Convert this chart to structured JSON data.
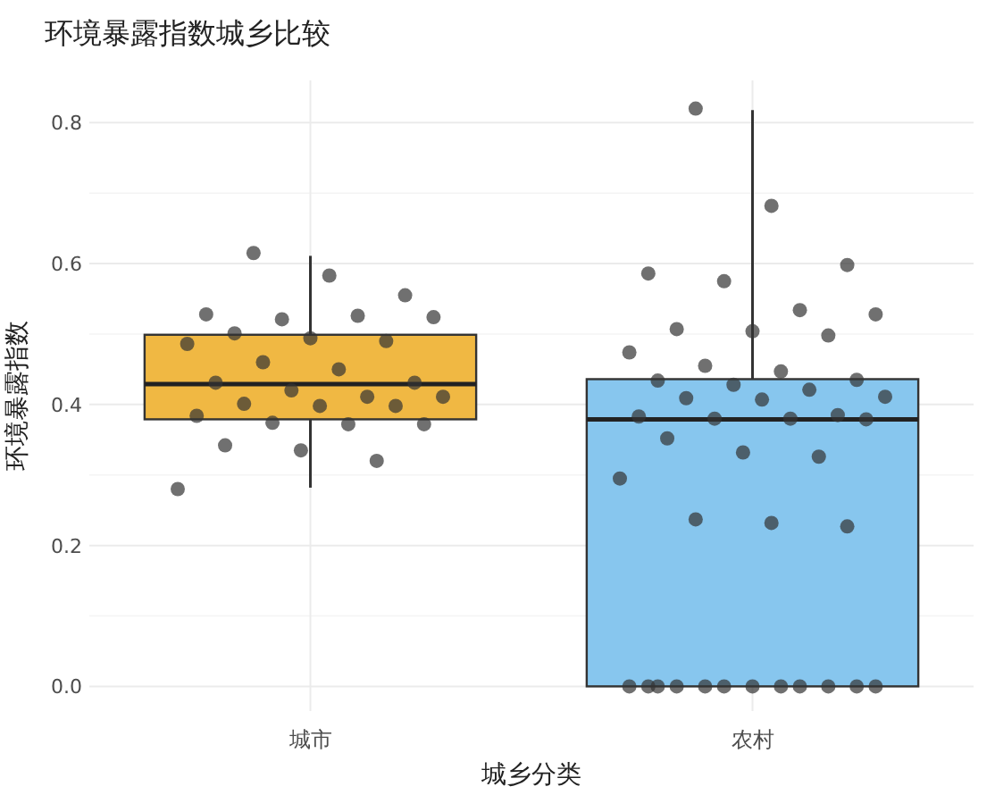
{
  "chart_data": {
    "type": "box",
    "title": "环境暴露指数城乡比较",
    "xlabel": "城乡分类",
    "ylabel": "环境暴露指数",
    "categories": [
      "城市",
      "农村"
    ],
    "colors": [
      "#f0b843",
      "#87c6ee"
    ],
    "boxes": [
      {
        "low": 0.282,
        "q1": 0.379,
        "median": 0.429,
        "q3": 0.499,
        "high": 0.611
      },
      {
        "low": 0,
        "q1": 0,
        "median": 0.379,
        "q3": 0.436,
        "high": 0.818
      }
    ],
    "ylim": [
      -0.035,
      0.86
    ],
    "yticks": [
      {
        "value": 0,
        "label": "0.0"
      },
      {
        "value": 0.2,
        "label": "0.2"
      },
      {
        "value": 0.4,
        "label": "0.4"
      },
      {
        "value": 0.6,
        "label": "0.6"
      },
      {
        "value": 0.8,
        "label": "0.8"
      }
    ],
    "grid": true,
    "series": [
      {
        "type": "scatter",
        "color": "#333333",
        "marker": "circle",
        "x": [
          "城市",
          "城市",
          "城市",
          "城市",
          "城市",
          "城市",
          "城市",
          "城市",
          "城市",
          "城市",
          "城市",
          "城市",
          "城市",
          "城市",
          "城市",
          "城市",
          "城市",
          "城市",
          "城市",
          "城市",
          "城市",
          "城市",
          "城市",
          "城市",
          "城市",
          "城市",
          "城市",
          "城市",
          "城市",
          "农村",
          "农村",
          "农村",
          "农村",
          "农村",
          "农村",
          "农村",
          "农村",
          "农村",
          "农村",
          "农村",
          "农村",
          "农村",
          "农村",
          "农村",
          "农村",
          "农村",
          "农村",
          "农村",
          "农村",
          "农村",
          "农村",
          "农村",
          "农村",
          "农村",
          "农村",
          "农村",
          "农村",
          "农村",
          "农村",
          "农村",
          "农村",
          "农村",
          "农村",
          "农村",
          "农村",
          "农村",
          "农村",
          "农村",
          "农村",
          "农村",
          "农村",
          "农村",
          "农村"
        ],
        "values": [
          0.615,
          0.583,
          0.555,
          0.528,
          0.521,
          0.526,
          0.524,
          0.501,
          0.494,
          0.49,
          0.486,
          0.46,
          0.45,
          0.431,
          0.431,
          0.42,
          0.411,
          0.411,
          0.401,
          0.398,
          0.398,
          0.384,
          0.374,
          0.372,
          0.372,
          0.342,
          0.335,
          0.32,
          0.28,
          0.82,
          0.682,
          0.598,
          0.586,
          0.575,
          0.534,
          0.528,
          0.507,
          0.504,
          0.498,
          0.474,
          0.455,
          0.447,
          0.435,
          0.434,
          0.428,
          0.421,
          0.411,
          0.409,
          0.407,
          0.385,
          0.383,
          0.38,
          0.38,
          0.379,
          0.352,
          0.332,
          0.326,
          0.295,
          0.237,
          0.232,
          0.227,
          0,
          0,
          0,
          0,
          0,
          0,
          0,
          0,
          0,
          0,
          0,
          0
        ]
      }
    ]
  }
}
